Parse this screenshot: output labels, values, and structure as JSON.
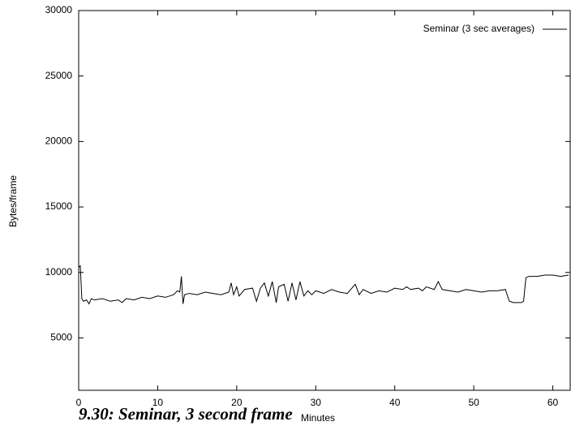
{
  "chart_data": {
    "type": "line",
    "x_label": "Minutes",
    "y_label": "Bytes/frame",
    "caption": "9.30: Seminar, 3 second frame",
    "x": [
      0,
      0.2,
      0.4,
      0.6,
      1,
      1.3,
      1.6,
      2,
      3,
      4,
      5,
      5.5,
      6,
      7,
      8,
      9,
      10,
      11,
      12,
      12.5,
      12.8,
      13,
      13.2,
      13.4,
      14,
      15,
      16,
      17,
      18,
      19,
      19.3,
      19.6,
      20,
      20.3,
      21,
      22,
      22.5,
      23,
      23.5,
      24,
      24.5,
      25,
      25.3,
      26,
      26.5,
      27,
      27.5,
      28,
      28.5,
      29,
      29.5,
      30,
      31,
      32,
      33,
      34,
      35,
      35.5,
      36,
      37,
      38,
      39,
      40,
      41,
      41.5,
      42,
      43,
      43.5,
      44,
      45,
      45.5,
      46,
      47,
      48,
      49,
      50,
      51,
      52,
      53,
      54,
      54.5,
      55,
      56,
      56.3,
      56.6,
      57,
      58,
      59,
      60,
      61,
      62
    ],
    "series": [
      {
        "name": "Seminar (3 sec averages)",
        "color": "#000000",
        "values": [
          10400,
          10500,
          8000,
          7800,
          7900,
          7600,
          8000,
          7900,
          8000,
          7800,
          7900,
          7700,
          8000,
          7900,
          8100,
          8000,
          8200,
          8100,
          8300,
          8600,
          8500,
          9700,
          7600,
          8300,
          8400,
          8300,
          8500,
          8400,
          8300,
          8500,
          9200,
          8300,
          8900,
          8200,
          8700,
          8800,
          7800,
          8800,
          9200,
          8200,
          9300,
          7700,
          8900,
          9100,
          7800,
          9200,
          7900,
          9300,
          8200,
          8600,
          8300,
          8600,
          8400,
          8700,
          8500,
          8400,
          9100,
          8300,
          8700,
          8400,
          8600,
          8500,
          8800,
          8700,
          8900,
          8700,
          8800,
          8600,
          8900,
          8700,
          9300,
          8700,
          8600,
          8500,
          8700,
          8600,
          8500,
          8600,
          8600,
          8700,
          7800,
          7700,
          7700,
          7800,
          9600,
          9700,
          9700,
          9800,
          9800,
          9700,
          9800
        ]
      }
    ],
    "xlim": [
      0,
      62.2
    ],
    "ylim": [
      1000,
      30000
    ],
    "xticks": [
      0,
      10,
      20,
      30,
      40,
      50,
      60
    ],
    "yticks": [
      5000,
      10000,
      15000,
      20000,
      25000,
      30000
    ],
    "legend": "upper right"
  }
}
